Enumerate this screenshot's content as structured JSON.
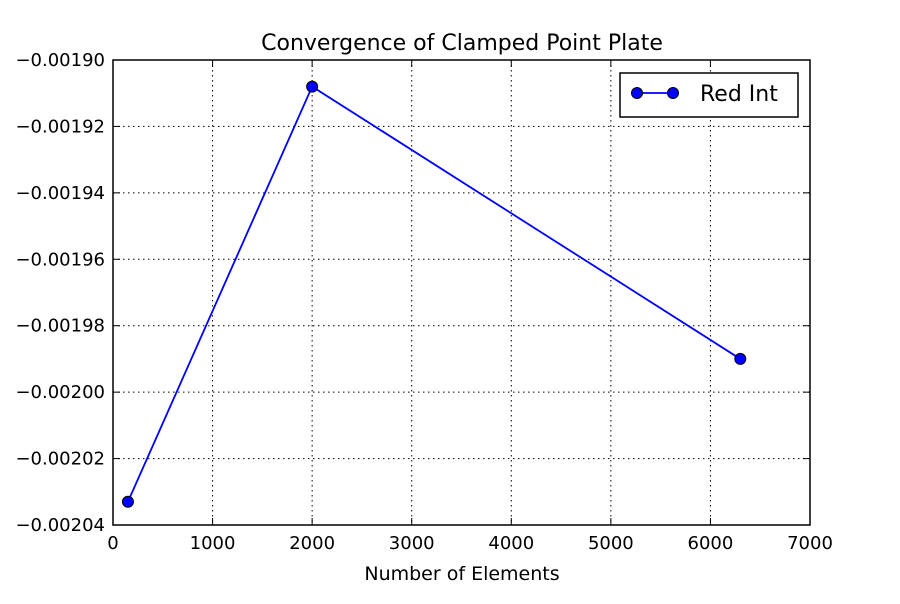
{
  "chart_data": {
    "type": "line",
    "title": "Convergence of Clamped Point Plate",
    "xlabel": "Number of Elements",
    "ylabel": "",
    "xlim": [
      0,
      7000
    ],
    "ylim": [
      -0.00204,
      -0.0019
    ],
    "x_ticks": [
      0,
      1000,
      2000,
      3000,
      4000,
      5000,
      6000,
      7000
    ],
    "x_tick_labels": [
      "0",
      "1000",
      "2000",
      "3000",
      "4000",
      "5000",
      "6000",
      "7000"
    ],
    "y_ticks": [
      -0.0019,
      -0.00192,
      -0.00194,
      -0.00196,
      -0.00198,
      -0.002,
      -0.00202,
      -0.00204
    ],
    "y_tick_labels": [
      "−0.00190",
      "−0.00192",
      "−0.00194",
      "−0.00196",
      "−0.00198",
      "−0.00200",
      "−0.00202",
      "−0.00204"
    ],
    "grid": true,
    "legend_position": "top-right",
    "series": [
      {
        "name": "Red Int",
        "color": "#0000ff",
        "marker": "circle",
        "x": [
          150,
          2000,
          6300
        ],
        "y": [
          -0.002033,
          -0.001908,
          -0.00199
        ]
      }
    ]
  }
}
